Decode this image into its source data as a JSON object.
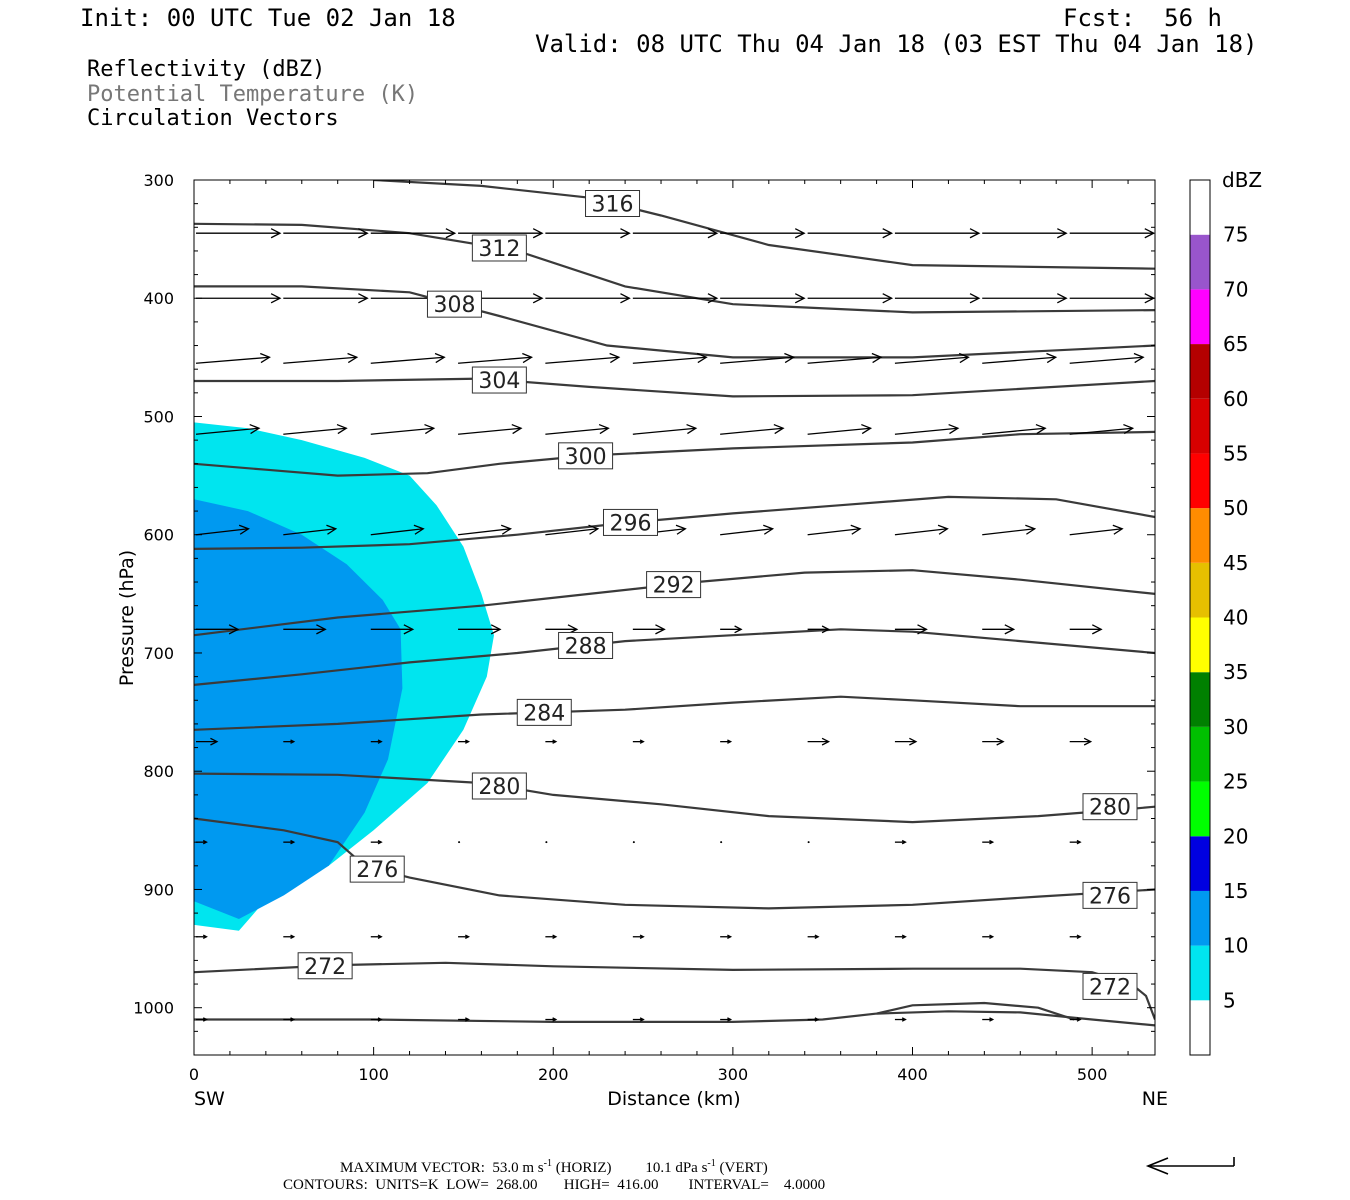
{
  "header": {
    "init": "Init: 00 UTC Tue 02 Jan 18",
    "fcst": "Fcst:  56 h",
    "valid": "Valid: 08 UTC Thu 04 Jan 18 (03 EST Thu 04 Jan 18)"
  },
  "legend_lines": {
    "reflectivity": "Reflectivity (dBZ)",
    "theta": "Potential Temperature (K)",
    "vectors": "Circulation Vectors"
  },
  "footer": {
    "max_vector_prefix": "MAXIMUM VECTOR:  53.0 m s",
    "max_vector_horiz": " (HORIZ)",
    "max_vector_vert_prefix": "10.1 dPa s",
    "max_vector_vert": " (VERT)",
    "exponent": "-1",
    "contours": "CONTOURS:  UNITS=K  LOW=  268.00       HIGH=  416.00        INTERVAL=    4.0000"
  },
  "colors": {
    "refl_5": "#00e5ef",
    "refl_10": "#0099f0",
    "contour": "#3a3a3a",
    "vector": "#000000"
  },
  "chart_data": {
    "type": "heatmap",
    "xlabel": "Distance (km)",
    "ylabel": "Pressure (hPa)",
    "x_ticks": [
      0,
      100,
      200,
      300,
      400,
      500
    ],
    "y_ticks": [
      300,
      400,
      500,
      600,
      700,
      800,
      900,
      1000
    ],
    "xlim": [
      0,
      535
    ],
    "ylim": [
      300,
      1040
    ],
    "left_end_label": "SW",
    "right_end_label": "NE",
    "colorbar": {
      "unit": "dBZ",
      "levels": [
        5,
        10,
        15,
        20,
        25,
        30,
        35,
        40,
        45,
        50,
        55,
        60,
        65,
        70,
        75
      ],
      "colors": [
        "#00e5ef",
        "#0099f0",
        "#0000e0",
        "#00ff00",
        "#00c000",
        "#008000",
        "#ffff00",
        "#e6c000",
        "#ff8c00",
        "#ff0000",
        "#d70000",
        "#b40000",
        "#ff00ff",
        "#9955cc",
        "#ffffff"
      ]
    },
    "reflectivity_regions": [
      {
        "level": 5,
        "outline": [
          [
            0,
            505
          ],
          [
            30,
            510
          ],
          [
            60,
            520
          ],
          [
            95,
            535
          ],
          [
            120,
            550
          ],
          [
            135,
            575
          ],
          [
            150,
            610
          ],
          [
            160,
            650
          ],
          [
            167,
            685
          ],
          [
            163,
            720
          ],
          [
            150,
            765
          ],
          [
            130,
            810
          ],
          [
            100,
            850
          ],
          [
            75,
            880
          ],
          [
            45,
            900
          ],
          [
            25,
            935
          ],
          [
            0,
            930
          ]
        ]
      },
      {
        "level": 10,
        "outline": [
          [
            0,
            570
          ],
          [
            30,
            580
          ],
          [
            60,
            600
          ],
          [
            85,
            625
          ],
          [
            105,
            655
          ],
          [
            115,
            680
          ],
          [
            116,
            730
          ],
          [
            108,
            790
          ],
          [
            95,
            835
          ],
          [
            75,
            880
          ],
          [
            50,
            905
          ],
          [
            25,
            925
          ],
          [
            0,
            910
          ]
        ]
      }
    ],
    "theta_contours": [
      {
        "label": "316",
        "label_x": 233,
        "points": [
          [
            100,
            300
          ],
          [
            160,
            305
          ],
          [
            220,
            315
          ],
          [
            260,
            330
          ],
          [
            320,
            355
          ],
          [
            400,
            372
          ],
          [
            535,
            375
          ]
        ]
      },
      {
        "label": "312",
        "label_x": 170,
        "points": [
          [
            0,
            337
          ],
          [
            60,
            338
          ],
          [
            120,
            345
          ],
          [
            180,
            360
          ],
          [
            240,
            390
          ],
          [
            300,
            405
          ],
          [
            400,
            412
          ],
          [
            535,
            410
          ]
        ]
      },
      {
        "label": "308",
        "label_x": 145,
        "points": [
          [
            0,
            390
          ],
          [
            60,
            390
          ],
          [
            120,
            395
          ],
          [
            170,
            415
          ],
          [
            230,
            440
          ],
          [
            300,
            450
          ],
          [
            400,
            450
          ],
          [
            535,
            440
          ]
        ]
      },
      {
        "label": "304",
        "label_x": 170,
        "points": [
          [
            0,
            470
          ],
          [
            80,
            470
          ],
          [
            160,
            468
          ],
          [
            220,
            475
          ],
          [
            300,
            483
          ],
          [
            400,
            482
          ],
          [
            535,
            470
          ]
        ]
      },
      {
        "label": "300",
        "label_x": 218,
        "points": [
          [
            0,
            540
          ],
          [
            40,
            545
          ],
          [
            80,
            550
          ],
          [
            130,
            548
          ],
          [
            170,
            540
          ],
          [
            220,
            533
          ],
          [
            300,
            527
          ],
          [
            400,
            522
          ],
          [
            460,
            515
          ],
          [
            535,
            513
          ]
        ]
      },
      {
        "label": "296",
        "label_x": 243,
        "points": [
          [
            0,
            612
          ],
          [
            60,
            611
          ],
          [
            120,
            608
          ],
          [
            180,
            600
          ],
          [
            240,
            590
          ],
          [
            300,
            582
          ],
          [
            360,
            575
          ],
          [
            420,
            568
          ],
          [
            480,
            570
          ],
          [
            535,
            585
          ]
        ]
      },
      {
        "label": "292",
        "label_x": 267,
        "points": [
          [
            0,
            685
          ],
          [
            80,
            670
          ],
          [
            160,
            660
          ],
          [
            220,
            650
          ],
          [
            280,
            640
          ],
          [
            340,
            632
          ],
          [
            400,
            630
          ],
          [
            460,
            638
          ],
          [
            535,
            650
          ]
        ]
      },
      {
        "label": "288",
        "label_x": 218,
        "points": [
          [
            0,
            727
          ],
          [
            60,
            718
          ],
          [
            120,
            708
          ],
          [
            180,
            700
          ],
          [
            240,
            690
          ],
          [
            300,
            685
          ],
          [
            360,
            680
          ],
          [
            400,
            682
          ],
          [
            460,
            690
          ],
          [
            535,
            700
          ]
        ]
      },
      {
        "label": "284",
        "label_x": 195,
        "points": [
          [
            0,
            765
          ],
          [
            80,
            760
          ],
          [
            160,
            752
          ],
          [
            240,
            748
          ],
          [
            300,
            742
          ],
          [
            360,
            737
          ],
          [
            400,
            740
          ],
          [
            460,
            745
          ],
          [
            535,
            745
          ]
        ]
      },
      {
        "label": "280",
        "label_x": 170,
        "points": [
          [
            0,
            802
          ],
          [
            80,
            803
          ],
          [
            160,
            810
          ],
          [
            200,
            820
          ],
          [
            260,
            828
          ],
          [
            320,
            838
          ],
          [
            400,
            843
          ],
          [
            470,
            838
          ],
          [
            520,
            832
          ],
          [
            535,
            830
          ]
        ]
      },
      {
        "label": "276",
        "label_x": 102,
        "points": [
          [
            0,
            840
          ],
          [
            50,
            850
          ],
          [
            80,
            860
          ],
          [
            95,
            880
          ],
          [
            120,
            890
          ],
          [
            170,
            905
          ],
          [
            240,
            913
          ],
          [
            320,
            916
          ],
          [
            400,
            913
          ],
          [
            470,
            906
          ],
          [
            535,
            900
          ]
        ]
      },
      {
        "label": "272",
        "label_x": 73,
        "points": [
          [
            0,
            970
          ],
          [
            80,
            964
          ],
          [
            140,
            962
          ],
          [
            200,
            965
          ],
          [
            300,
            968
          ],
          [
            400,
            967
          ],
          [
            460,
            967
          ],
          [
            500,
            970
          ],
          [
            522,
            980
          ],
          [
            530,
            990
          ],
          [
            535,
            1010
          ]
        ]
      },
      {
        "label": "",
        "label_x": null,
        "points": [
          [
            0,
            1010
          ],
          [
            100,
            1010
          ],
          [
            200,
            1012
          ],
          [
            300,
            1012
          ],
          [
            350,
            1010
          ],
          [
            380,
            1005
          ],
          [
            400,
            998
          ],
          [
            440,
            996
          ],
          [
            470,
            1000
          ],
          [
            490,
            1010
          ]
        ]
      },
      {
        "label": "",
        "label_x": null,
        "points": [
          [
            380,
            1005
          ],
          [
            420,
            1003
          ],
          [
            460,
            1004
          ],
          [
            500,
            1010
          ],
          [
            535,
            1015
          ]
        ]
      }
    ],
    "right_edge_labels": [
      {
        "label": "280",
        "y": 830
      },
      {
        "label": "276",
        "y": 905
      },
      {
        "label": "272",
        "y": 982
      }
    ],
    "vectors": {
      "x": [
        0,
        48.6,
        97.3,
        145.9,
        194.5,
        243.2,
        291.8,
        340.5,
        389.1,
        437.7,
        486.4,
        535
      ],
      "levels": [
        345,
        400,
        455,
        515,
        600,
        680,
        775,
        860,
        940,
        1010
      ],
      "u": [
        [
          8,
          8,
          8,
          8,
          8,
          8,
          8,
          8,
          8,
          8,
          8,
          8
        ],
        [
          8,
          8,
          8,
          8,
          8,
          8,
          8,
          8,
          8,
          8,
          8,
          8
        ],
        [
          7,
          7,
          7,
          7,
          7,
          7,
          7,
          7,
          7,
          7,
          7,
          7
        ],
        [
          6,
          6,
          6,
          6,
          6,
          6,
          6,
          6,
          6,
          6,
          6,
          6
        ],
        [
          5,
          5,
          5,
          5,
          5,
          5,
          5,
          5,
          5,
          5,
          5,
          5
        ],
        [
          4,
          4,
          4,
          4,
          3,
          3,
          2,
          2,
          3,
          3,
          3,
          3
        ],
        [
          2,
          1,
          1,
          1,
          1,
          1,
          1,
          2,
          2,
          2,
          2,
          2
        ],
        [
          1,
          1,
          1,
          0,
          0,
          0,
          0,
          0,
          1,
          1,
          1,
          1
        ],
        [
          1,
          1,
          1,
          1,
          1,
          1,
          1,
          1,
          1,
          1,
          1,
          1
        ],
        [
          1,
          1,
          1,
          1,
          1,
          1,
          1,
          1,
          1,
          1,
          1,
          1
        ]
      ]
    }
  }
}
